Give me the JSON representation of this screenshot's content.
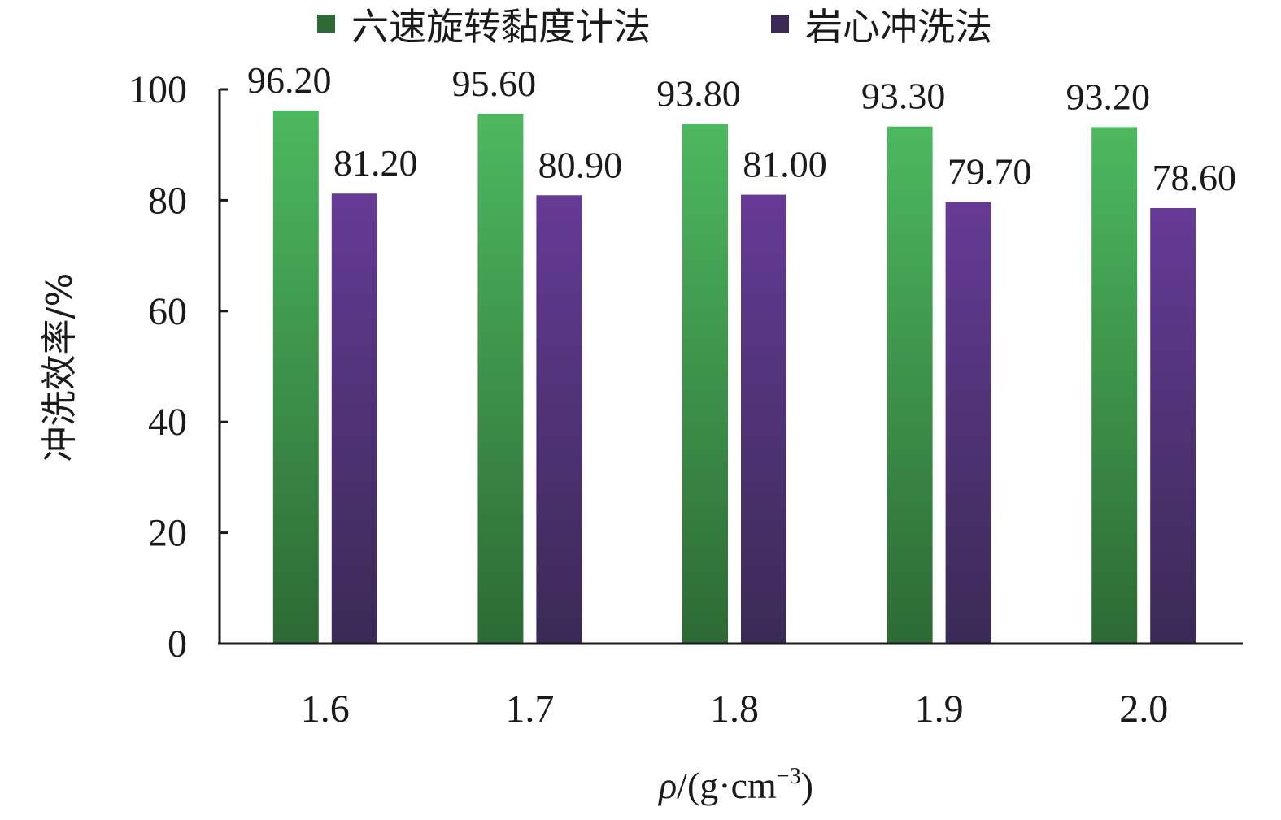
{
  "chart_data": {
    "type": "bar",
    "categories": [
      "1.6",
      "1.7",
      "1.8",
      "1.9",
      "2.0"
    ],
    "series": [
      {
        "name": "六速旋转黏度计法",
        "values": [
          96.2,
          95.6,
          93.8,
          93.3,
          93.2
        ],
        "color_top": "#4cb85f",
        "color_bottom": "#2d6a34"
      },
      {
        "name": "岩心冲洗法",
        "values": [
          81.2,
          80.9,
          81.0,
          79.7,
          78.6
        ],
        "color_top": "#653a96",
        "color_bottom": "#3a2a55"
      }
    ],
    "data_labels": [
      [
        "96.20",
        "95.60",
        "93.80",
        "93.30",
        "93.20"
      ],
      [
        "81.20",
        "80.90",
        "81.00",
        "79.70",
        "78.60"
      ]
    ],
    "yticks": [
      "0",
      "20",
      "40",
      "60",
      "80",
      "100"
    ],
    "ylim": [
      0,
      100
    ],
    "ylabel": "冲洗效率/%",
    "xlabel": {
      "rho": "ρ",
      "unit_start": "/(g·cm",
      "superscript": "−3",
      "unit_end": ")"
    },
    "legend": {
      "position": "top"
    },
    "grid": false
  }
}
